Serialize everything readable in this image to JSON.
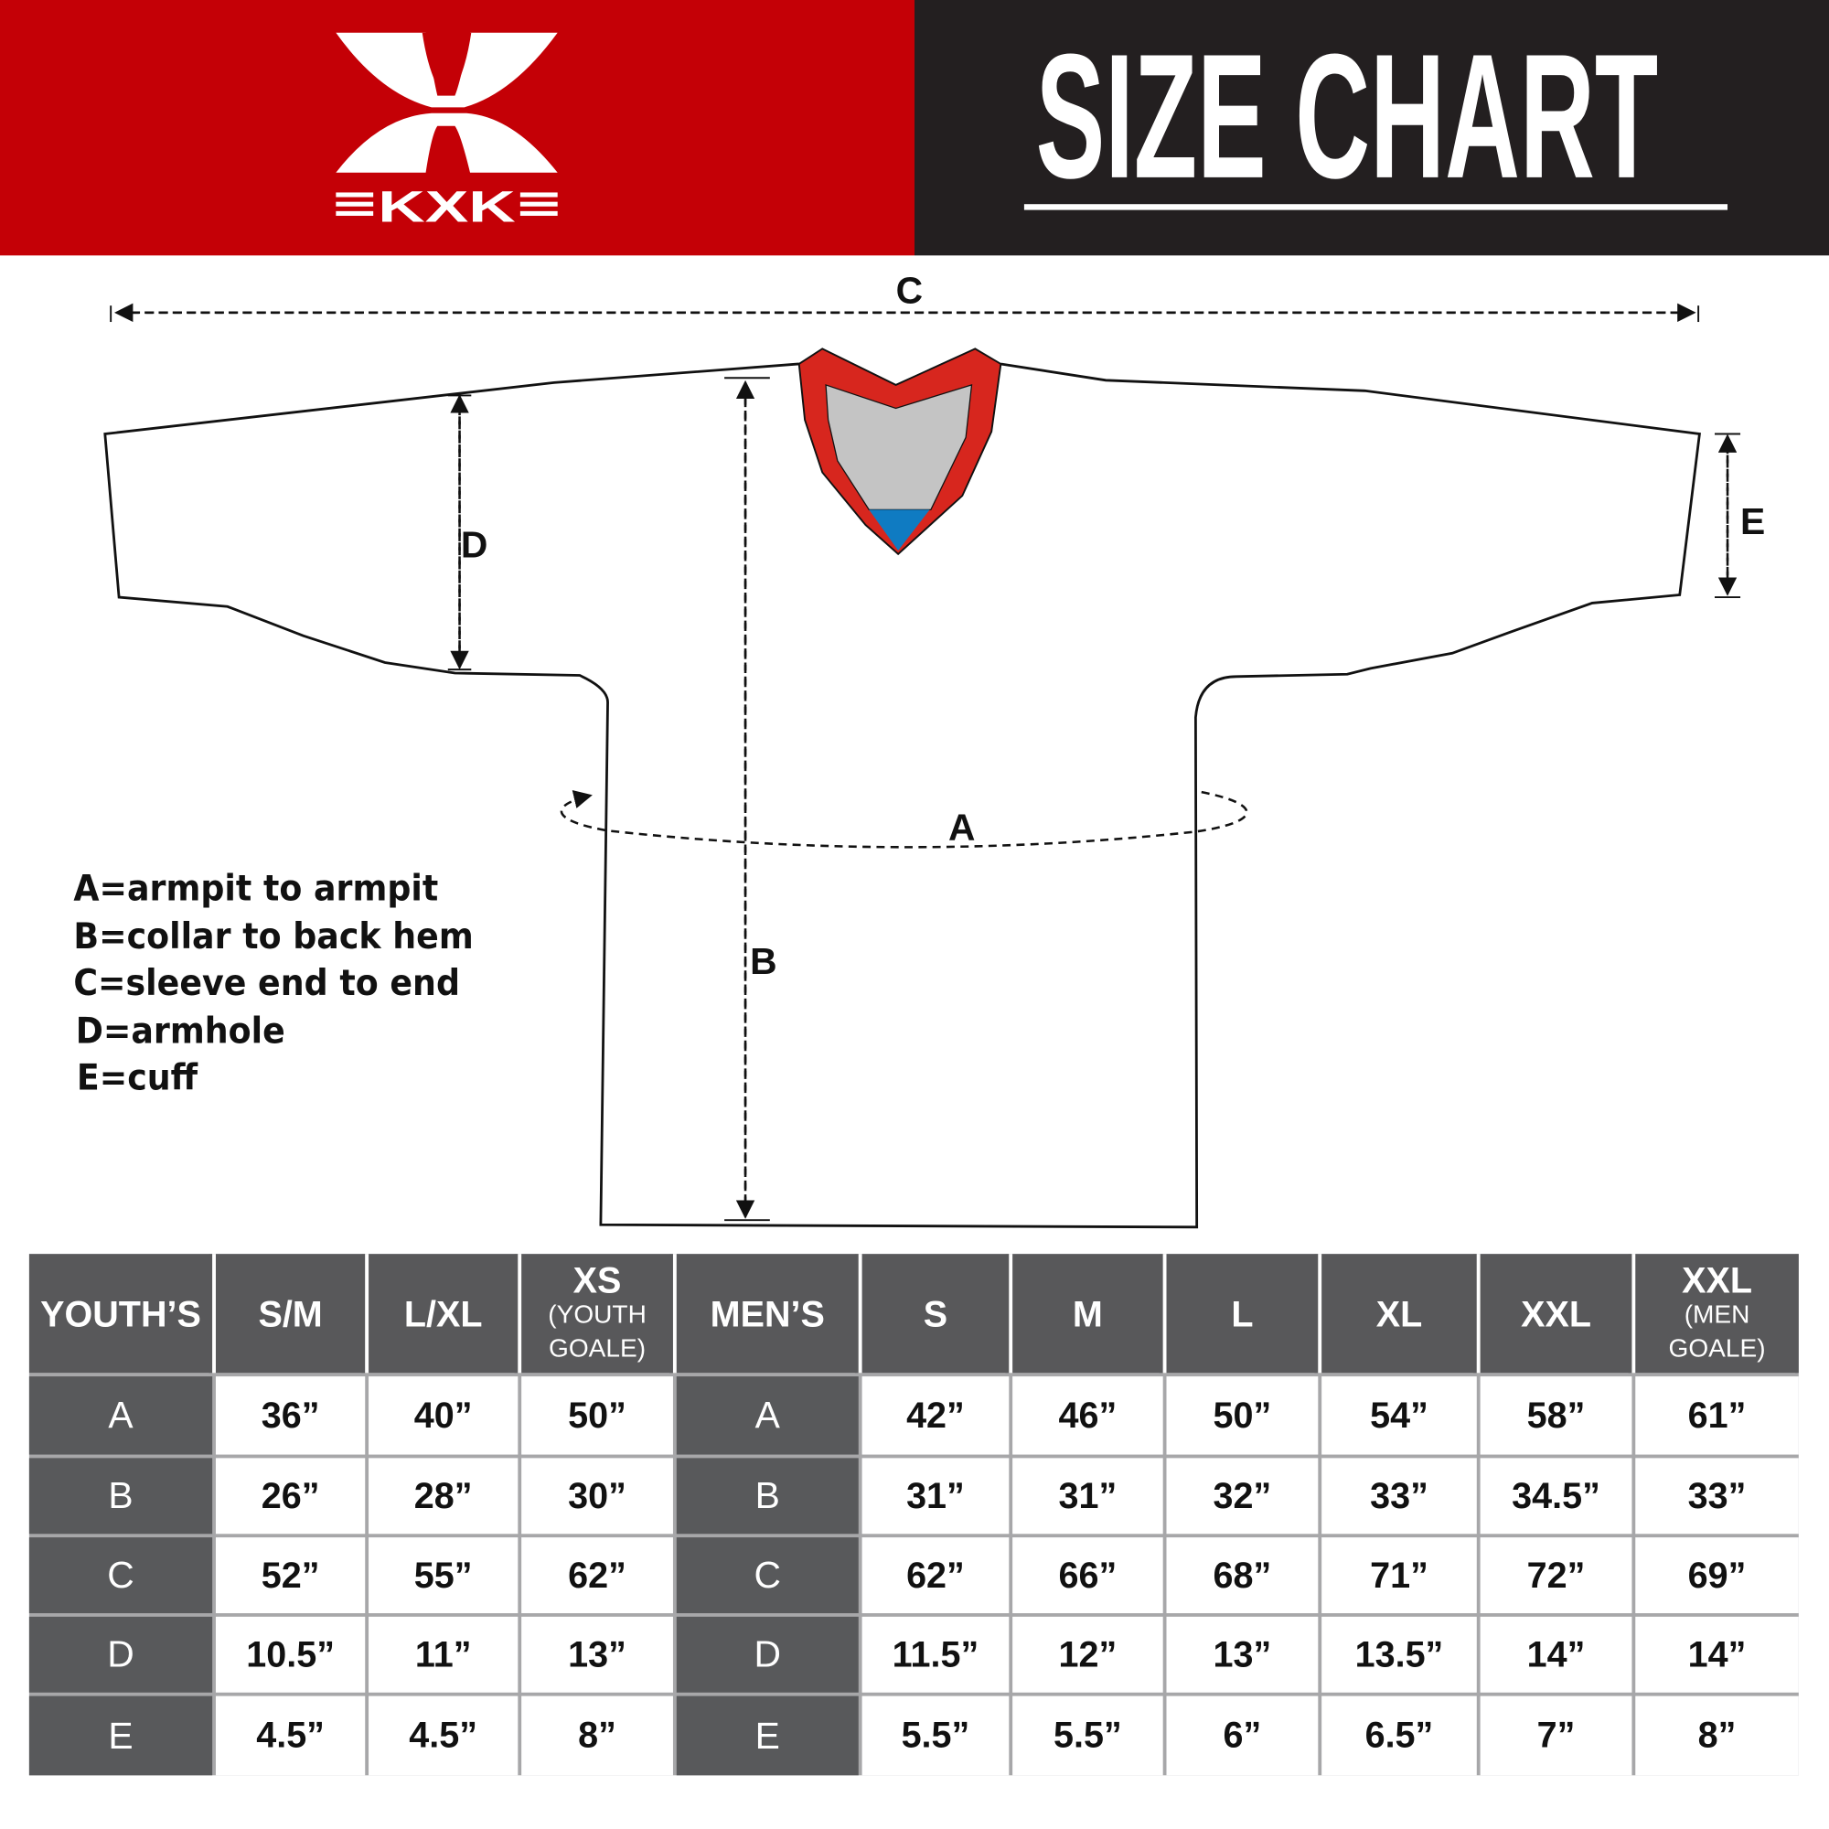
{
  "header": {
    "brand": "KXK",
    "title": "SIZE CHART",
    "brand_color": "#c40006",
    "dark_color": "#231f20"
  },
  "diagram": {
    "labels": {
      "a": "A",
      "b": "B",
      "c": "C",
      "d": "D",
      "e": "E"
    },
    "collar_colors": {
      "trim": "#d7261e",
      "inner": "#c4c4c4",
      "accent": "#0f7bc2"
    }
  },
  "legend": [
    "A=armpit to armpit",
    "B=collar to back hem",
    "C=sleeve end to end",
    "D=armhole",
    "E=cuff"
  ],
  "table": {
    "youth_header": "YOUTH’S",
    "men_header": "MEN’S",
    "youth_sizes": [
      {
        "label": "S/M",
        "sub": ""
      },
      {
        "label": "L/XL",
        "sub": ""
      },
      {
        "label": "XS",
        "sub": "(YOUTH GOALE)"
      }
    ],
    "men_sizes": [
      {
        "label": "S",
        "sub": ""
      },
      {
        "label": "M",
        "sub": ""
      },
      {
        "label": "L",
        "sub": ""
      },
      {
        "label": "XL",
        "sub": ""
      },
      {
        "label": "XXL",
        "sub": ""
      },
      {
        "label": "XXL",
        "sub": "(MEN GOALE)"
      }
    ],
    "rows": [
      {
        "key": "A",
        "youth": [
          "36”",
          "40”",
          "50”"
        ],
        "men": [
          "42”",
          "46”",
          "50”",
          "54”",
          "58”",
          "61”"
        ]
      },
      {
        "key": "B",
        "youth": [
          "26”",
          "28”",
          "30”"
        ],
        "men": [
          "31”",
          "31”",
          "32”",
          "33”",
          "34.5”",
          "33”"
        ]
      },
      {
        "key": "C",
        "youth": [
          "52”",
          "55”",
          "62”"
        ],
        "men": [
          "62”",
          "66”",
          "68”",
          "71”",
          "72”",
          "69”"
        ]
      },
      {
        "key": "D",
        "youth": [
          "10.5”",
          "11”",
          "13”"
        ],
        "men": [
          "11.5”",
          "12”",
          "13”",
          "13.5”",
          "14”",
          "14”"
        ]
      },
      {
        "key": "E",
        "youth": [
          "4.5”",
          "4.5”",
          "8”"
        ],
        "men": [
          "5.5”",
          "5.5”",
          "6”",
          "6.5”",
          "7”",
          "8”"
        ]
      }
    ]
  }
}
